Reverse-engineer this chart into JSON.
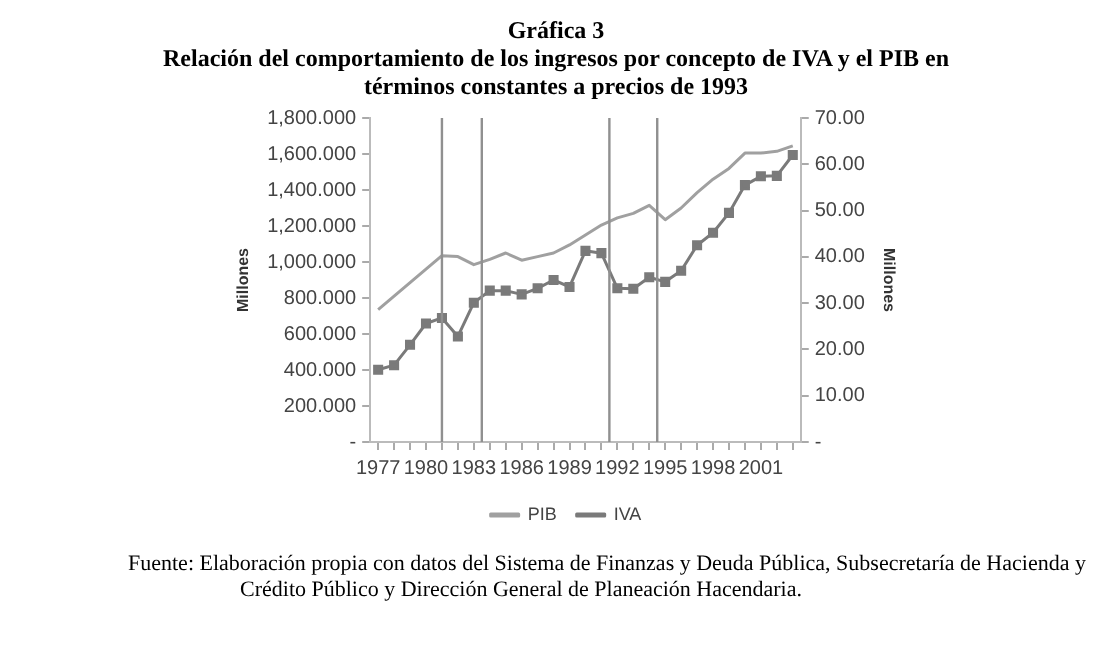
{
  "chart_data": {
    "type": "line",
    "title": "Gráfica 3",
    "subtitle": "Relación del comportamiento de los ingresos por concepto de IVA y el PIB en términos constantes a precios de 1993",
    "ylabel": "Millones",
    "y2label": "Millones",
    "x": [
      1977,
      1978,
      1979,
      1980,
      1981,
      1982,
      1983,
      1984,
      1985,
      1986,
      1987,
      1988,
      1989,
      1990,
      1991,
      1992,
      1993,
      1994,
      1995,
      1996,
      1997,
      1998,
      1999,
      2000,
      2001,
      2002,
      2003
    ],
    "series": [
      {
        "name": "PIB",
        "color": "#a0a0a0",
        "marker": "none",
        "values": [
          735,
          810,
          885,
          960,
          1035,
          1030,
          985,
          1015,
          1050,
          1010,
          1030,
          1050,
          1095,
          1150,
          1205,
          1245,
          1270,
          1315,
          1235,
          1300,
          1385,
          1460,
          1520,
          1605,
          1605,
          1615,
          1645
        ]
      },
      {
        "name": "IVA",
        "color": "#7a7a7a",
        "marker": "square",
        "axis": "y2",
        "values": [
          15.6,
          16.6,
          21.0,
          25.6,
          26.8,
          22.8,
          30.1,
          32.7,
          32.7,
          31.9,
          33.2,
          35.0,
          33.5,
          41.3,
          40.8,
          33.2,
          33.1,
          35.6,
          34.6,
          37.0,
          42.5,
          45.2,
          49.5,
          55.5,
          57.4,
          57.5,
          62.0
        ]
      }
    ],
    "xlim": [
      1976.5,
      2003.5
    ],
    "xticks": [
      1977,
      {
        "value": 1978,
        "label": null
      },
      {
        "value": 1979,
        "label": null
      },
      1980,
      {
        "value": 1981,
        "label": null
      },
      {
        "value": 1982,
        "label": null
      },
      1983,
      {
        "value": 1984,
        "label": null
      },
      {
        "value": 1985,
        "label": null
      },
      1986,
      {
        "value": 1987,
        "label": null
      },
      {
        "value": 1988,
        "label": null
      },
      1989,
      {
        "value": 1990,
        "label": null
      },
      {
        "value": 1991,
        "label": null
      },
      1992,
      {
        "value": 1993,
        "label": null
      },
      {
        "value": 1994,
        "label": null
      },
      1995,
      {
        "value": 1996,
        "label": null
      },
      {
        "value": 1997,
        "label": null
      },
      1998,
      {
        "value": 1999,
        "label": null
      },
      {
        "value": 2000,
        "label": null
      },
      2001,
      {
        "value": 2002,
        "label": null
      },
      {
        "value": 2003,
        "label": null
      }
    ],
    "ylim": [
      0,
      1800
    ],
    "yticks": [
      {
        "value": 0,
        "label": "-"
      },
      {
        "value": 200,
        "label": "200.000"
      },
      {
        "value": 400,
        "label": "400.000"
      },
      {
        "value": 600,
        "label": "600.000"
      },
      {
        "value": 800,
        "label": "800.000"
      },
      {
        "value": 1000,
        "label": "1,000.000"
      },
      {
        "value": 1200,
        "label": "1,200.000"
      },
      {
        "value": 1400,
        "label": "1,400.000"
      },
      {
        "value": 1600,
        "label": "1,600.000"
      },
      {
        "value": 1800,
        "label": "1,800.000"
      }
    ],
    "y2lim": [
      0,
      70
    ],
    "y2ticks": [
      {
        "value": 0,
        "label": "-"
      },
      {
        "value": 10,
        "label": "10.00"
      },
      {
        "value": 20,
        "label": "20.00"
      },
      {
        "value": 30,
        "label": "30.00"
      },
      {
        "value": 40,
        "label": "40.00"
      },
      {
        "value": 50,
        "label": "50.00"
      },
      {
        "value": 60,
        "label": "60.00"
      },
      {
        "value": 70,
        "label": "70.00"
      }
    ],
    "ref_lines": [
      {
        "axis": "x",
        "value": 1981,
        "color": "#909090"
      },
      {
        "axis": "x",
        "value": 1983.5,
        "color": "#909090"
      },
      {
        "axis": "x",
        "value": 1991.5,
        "color": "#909090"
      },
      {
        "axis": "x",
        "value": 1994.5,
        "color": "#909090"
      }
    ],
    "legend": "bottom",
    "annotations": [
      "Fuente: Elaboración propia con datos del Sistema de Finanzas y Deuda Pública, Subsecretaría de Hacienda y Crédito Público y Dirección General de Planeación Hacendaria."
    ]
  }
}
